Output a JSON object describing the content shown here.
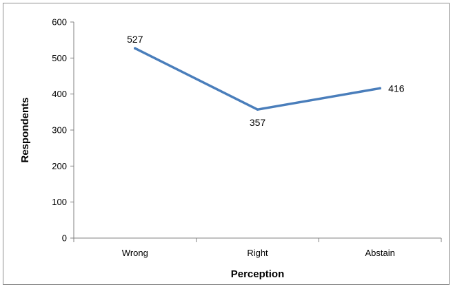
{
  "chart_data": {
    "type": "line",
    "title": "",
    "xlabel": "Perception",
    "ylabel": "Respondents",
    "categories": [
      "Wrong",
      "Right",
      "Abstain"
    ],
    "series": [
      {
        "values": [
          527,
          357,
          416
        ],
        "color": "#4a7ebb"
      }
    ],
    "data_labels": [
      "527",
      "357",
      "416"
    ],
    "ylim": [
      0,
      600
    ],
    "yticks": [
      0,
      100,
      200,
      300,
      400,
      500,
      600
    ],
    "ytick_labels": [
      "0",
      "100",
      "200",
      "300",
      "400",
      "500",
      "600"
    ],
    "grid": false,
    "legend": "none"
  }
}
